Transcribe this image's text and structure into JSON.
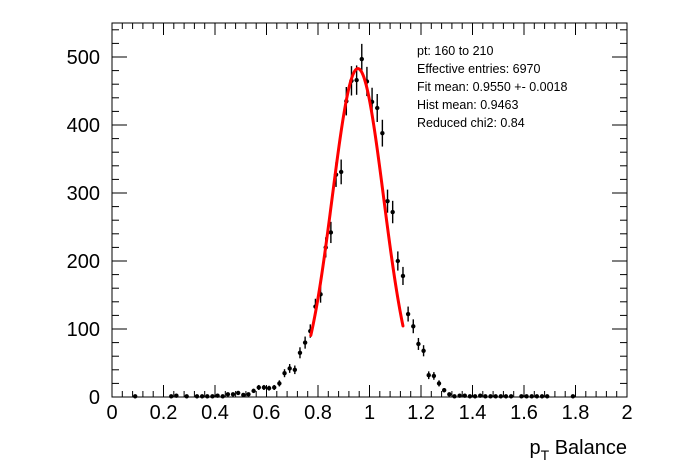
{
  "chart_data": {
    "type": "scatter",
    "title": "",
    "xlabel": {
      "main": "p",
      "sub": "T",
      "rest": " Balance"
    },
    "ylabel": "",
    "xlim": [
      0,
      2
    ],
    "ylim": [
      0,
      550
    ],
    "x_ticks": [
      0,
      0.2,
      0.4,
      0.6,
      0.8,
      1,
      1.2,
      1.4,
      1.6,
      1.8,
      2
    ],
    "x_tick_labels": [
      "0",
      "0.2",
      "0.4",
      "0.6",
      "0.8",
      "1",
      "1.2",
      "1.4",
      "1.6",
      "1.8",
      "2"
    ],
    "y_ticks": [
      0,
      100,
      200,
      300,
      400,
      500
    ],
    "y_tick_labels": [
      "0",
      "100",
      "200",
      "300",
      "400",
      "500"
    ],
    "grid": false,
    "stats": [
      "pt: 160 to 210",
      "Effective entries: 6970",
      "Fit mean: 0.9550 +- 0.0018",
      "Hist mean: 0.9463",
      "Reduced chi2: 0.84"
    ],
    "histogram": {
      "name": "data",
      "x": [
        0.09,
        0.23,
        0.25,
        0.29,
        0.33,
        0.35,
        0.37,
        0.39,
        0.41,
        0.43,
        0.45,
        0.47,
        0.49,
        0.51,
        0.53,
        0.55,
        0.57,
        0.59,
        0.61,
        0.63,
        0.65,
        0.67,
        0.69,
        0.71,
        0.73,
        0.75,
        0.77,
        0.79,
        0.81,
        0.83,
        0.85,
        0.87,
        0.89,
        0.91,
        0.93,
        0.95,
        0.97,
        0.99,
        1.01,
        1.03,
        1.05,
        1.07,
        1.09,
        1.11,
        1.13,
        1.15,
        1.17,
        1.19,
        1.21,
        1.23,
        1.25,
        1.27,
        1.29,
        1.31,
        1.33,
        1.35,
        1.37,
        1.39,
        1.41,
        1.43,
        1.45,
        1.47,
        1.49,
        1.51,
        1.53,
        1.55,
        1.59,
        1.61,
        1.63,
        1.65,
        1.67,
        1.69,
        1.79
      ],
      "y": [
        1,
        1,
        2,
        1,
        1,
        1,
        1,
        1,
        2,
        1,
        4,
        4,
        6,
        3,
        4,
        9,
        14,
        14,
        13,
        14,
        20,
        35,
        42,
        40,
        65,
        80,
        97,
        133,
        151,
        220,
        242,
        327,
        331,
        435,
        465,
        466,
        497,
        464,
        434,
        425,
        388,
        288,
        272,
        200,
        178,
        122,
        104,
        78,
        68,
        32,
        31,
        20,
        10,
        4,
        1,
        2,
        2,
        1,
        1,
        2,
        1,
        1,
        1,
        1,
        1,
        1,
        1,
        1,
        1,
        1,
        1,
        1,
        1
      ],
      "err": [
        1,
        1,
        1.4,
        1,
        1,
        1,
        1,
        1,
        1.4,
        1,
        2,
        2,
        2.4,
        1.7,
        2,
        3,
        3.7,
        3.7,
        3.6,
        3.7,
        4.5,
        5.9,
        6.5,
        6.3,
        8.1,
        8.9,
        9.8,
        11.5,
        12.3,
        14.8,
        15.6,
        18.1,
        18.2,
        20.9,
        21.6,
        21.6,
        22.3,
        21.5,
        20.8,
        20.6,
        19.7,
        17,
        16.5,
        14.1,
        13.3,
        11,
        10.2,
        8.8,
        8.2,
        5.7,
        5.6,
        4.5,
        3.2,
        2,
        1,
        1.4,
        1.4,
        1,
        1,
        1.4,
        1,
        1,
        1,
        1,
        1,
        1,
        1,
        1,
        1,
        1,
        1,
        1,
        1
      ]
    },
    "fit": {
      "name": "fit",
      "type": "gaussian",
      "color": "#ff0000",
      "mean": 0.955,
      "sigma": 0.1,
      "amplitude": 483,
      "range": [
        0.772,
        1.13
      ]
    },
    "colors": {
      "points": "#000000",
      "fit": "#ff0000",
      "frame": "#000000",
      "background": "#ffffff"
    }
  }
}
